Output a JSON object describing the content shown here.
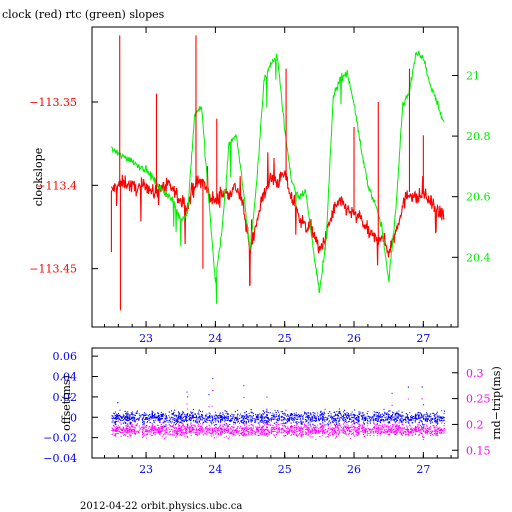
{
  "chart_data": [
    {
      "type": "line",
      "title": "clock (red) rtc (green) slopes",
      "x_ticks": [
        23,
        24,
        25,
        26,
        27
      ],
      "xlim": [
        22.22,
        27.5
      ],
      "left_axis": {
        "label": "clockslope",
        "color": "#ff0000",
        "ylim": [
          -113.485,
          -113.305
        ],
        "ticks": [
          -113.35,
          -113.4,
          -113.45
        ],
        "tick_labels": [
          "−113.35",
          "−113.4",
          "−113.45"
        ]
      },
      "right_axis": {
        "color": "#00ee00",
        "ylim": [
          20.17,
          21.16
        ],
        "ticks": [
          20.4,
          20.6,
          20.8,
          21
        ],
        "tick_labels": [
          "20.4",
          "20.6",
          "20.8",
          "21"
        ]
      },
      "series": [
        {
          "color": "#ff0000",
          "axis": "left",
          "x": [
            22.5,
            22.6,
            22.7,
            22.8,
            22.9,
            23.0,
            23.1,
            23.2,
            23.3,
            23.4,
            23.5,
            23.6,
            23.7,
            23.8,
            23.9,
            24.0,
            24.1,
            24.2,
            24.3,
            24.4,
            24.5,
            24.6,
            24.7,
            24.8,
            24.9,
            25.0,
            25.1,
            25.2,
            25.3,
            25.4,
            25.5,
            25.6,
            25.7,
            25.8,
            25.9,
            26.0,
            26.1,
            26.2,
            26.3,
            26.4,
            26.5,
            26.6,
            26.7,
            26.8,
            26.9,
            27.0,
            27.1,
            27.2,
            27.3
          ],
          "y": [
            -113.403,
            -113.4,
            -113.398,
            -113.401,
            -113.402,
            -113.399,
            -113.405,
            -113.402,
            -113.4,
            -113.403,
            -113.41,
            -113.412,
            -113.4,
            -113.397,
            -113.405,
            -113.41,
            -113.405,
            -113.404,
            -113.401,
            -113.412,
            -113.44,
            -113.42,
            -113.405,
            -113.396,
            -113.398,
            -113.393,
            -113.408,
            -113.418,
            -113.425,
            -113.426,
            -113.44,
            -113.43,
            -113.415,
            -113.41,
            -113.414,
            -113.418,
            -113.42,
            -113.428,
            -113.432,
            -113.43,
            -113.44,
            -113.428,
            -113.412,
            -113.404,
            -113.408,
            -113.405,
            -113.41,
            -113.416,
            -113.418
          ]
        },
        {
          "color": "#00ee00",
          "axis": "right",
          "x": [
            22.5,
            22.6,
            22.7,
            22.8,
            22.9,
            23.0,
            23.1,
            23.2,
            23.3,
            23.4,
            23.5,
            23.6,
            23.7,
            23.8,
            23.9,
            24.0,
            24.1,
            24.2,
            24.3,
            24.4,
            24.5,
            24.6,
            24.7,
            24.8,
            24.9,
            25.0,
            25.1,
            25.2,
            25.3,
            25.4,
            25.5,
            25.6,
            25.7,
            25.8,
            25.9,
            26.0,
            26.1,
            26.2,
            26.3,
            26.4,
            26.5,
            26.6,
            26.7,
            26.8,
            26.9,
            27.0,
            27.1,
            27.2,
            27.3
          ],
          "y": [
            20.76,
            20.74,
            20.73,
            20.72,
            20.7,
            20.69,
            20.66,
            20.63,
            20.61,
            20.58,
            20.52,
            20.55,
            20.87,
            20.9,
            20.6,
            20.32,
            20.5,
            20.78,
            20.8,
            20.63,
            20.42,
            20.66,
            20.98,
            21.04,
            21.06,
            20.82,
            20.65,
            20.6,
            20.62,
            20.45,
            20.28,
            20.46,
            20.93,
            20.99,
            21.01,
            20.91,
            20.76,
            20.64,
            20.58,
            20.5,
            20.32,
            20.55,
            20.9,
            20.95,
            21.08,
            21.06,
            20.97,
            20.91,
            20.84
          ]
        }
      ]
    },
    {
      "type": "scatter",
      "x_ticks": [
        23,
        24,
        25,
        26,
        27
      ],
      "xlim": [
        22.22,
        27.5
      ],
      "left_axis": {
        "label": "offset(ms)",
        "color": "#0000ff",
        "ylim": [
          -0.04,
          0.068
        ],
        "ticks": [
          -0.04,
          -0.02,
          0,
          0.02,
          0.04,
          0.06
        ],
        "tick_labels": [
          "−0.04",
          "−0.02",
          "0",
          "0.02",
          "0.04",
          "0.06"
        ]
      },
      "right_axis": {
        "label": "rnd−trip(ms)",
        "color": "#ff00ff",
        "ylim": [
          0.135,
          0.348
        ],
        "ticks": [
          0.15,
          0.2,
          0.25,
          0.3
        ],
        "tick_labels": [
          "0.15",
          "0.2",
          "0.25",
          "0.3"
        ]
      },
      "series": [
        {
          "color": "#0000ff",
          "axis": "left",
          "x_range": [
            22.5,
            27.3
          ],
          "center": 0.0,
          "spread": 0.006
        },
        {
          "color": "#ff00ff",
          "axis": "right",
          "x_range": [
            22.5,
            27.3
          ],
          "center": 0.19,
          "spread": 0.012
        }
      ]
    }
  ],
  "footer": "2012-04-22 orbit.physics.ubc.ca"
}
